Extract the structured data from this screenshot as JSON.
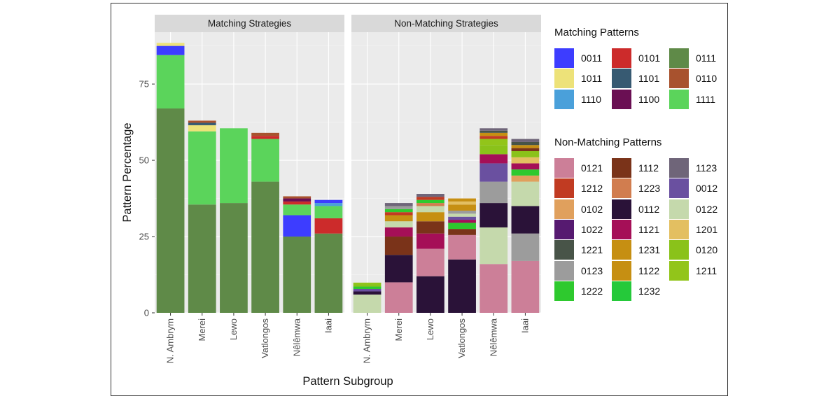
{
  "chart_data": {
    "type": "bar",
    "stacked": true,
    "xlabel": "Pattern Subgroup",
    "ylabel": "Pattern Percentage",
    "ylim": [
      0,
      92
    ],
    "yticks": [
      0,
      25,
      50,
      75
    ],
    "grid": true,
    "categories": [
      "N. Ambrym",
      "Merei",
      "Lewo",
      "Vatlongos",
      "Nêlêmwa",
      "Iaai"
    ],
    "facets": [
      {
        "title": "Matching Strategies",
        "bars": [
          [
            {
              "pattern": "0111",
              "value": 67
            },
            {
              "pattern": "1111",
              "value": 17.5
            },
            {
              "pattern": "0011",
              "value": 3
            },
            {
              "pattern": "1011",
              "value": 1
            }
          ],
          [
            {
              "pattern": "0111",
              "value": 35.5
            },
            {
              "pattern": "1111",
              "value": 24
            },
            {
              "pattern": "1011",
              "value": 2
            },
            {
              "pattern": "1101",
              "value": 0.8
            },
            {
              "pattern": "0110",
              "value": 0.7
            }
          ],
          [
            {
              "pattern": "0111",
              "value": 36
            },
            {
              "pattern": "1111",
              "value": 24.5
            }
          ],
          [
            {
              "pattern": "0111",
              "value": 43
            },
            {
              "pattern": "1111",
              "value": 14
            },
            {
              "pattern": "0101",
              "value": 1
            },
            {
              "pattern": "0110",
              "value": 1
            }
          ],
          [
            {
              "pattern": "0111",
              "value": 25
            },
            {
              "pattern": "0011",
              "value": 7
            },
            {
              "pattern": "1111",
              "value": 3.5
            },
            {
              "pattern": "0101",
              "value": 1
            },
            {
              "pattern": "1100",
              "value": 1
            },
            {
              "pattern": "0110",
              "value": 0.7
            }
          ],
          [
            {
              "pattern": "0111",
              "value": 26
            },
            {
              "pattern": "0101",
              "value": 5
            },
            {
              "pattern": "1111",
              "value": 4
            },
            {
              "pattern": "1110",
              "value": 1
            },
            {
              "pattern": "0011",
              "value": 1
            }
          ]
        ]
      },
      {
        "title": "Non-Matching Strategies",
        "bars": [
          [
            {
              "pattern": "0122",
              "value": 6
            },
            {
              "pattern": "0112",
              "value": 1
            },
            {
              "pattern": "0012",
              "value": 0.8
            },
            {
              "pattern": "1222",
              "value": 0.8
            },
            {
              "pattern": "0120",
              "value": 0.8
            },
            {
              "pattern": "1211",
              "value": 0.5
            }
          ],
          [
            {
              "pattern": "0121",
              "value": 10
            },
            {
              "pattern": "0112",
              "value": 9
            },
            {
              "pattern": "1112",
              "value": 6
            },
            {
              "pattern": "1121",
              "value": 3
            },
            {
              "pattern": "0122",
              "value": 2
            },
            {
              "pattern": "1231",
              "value": 2
            },
            {
              "pattern": "1212",
              "value": 1
            },
            {
              "pattern": "1222",
              "value": 1
            },
            {
              "pattern": "0123",
              "value": 1
            },
            {
              "pattern": "1123",
              "value": 1
            }
          ],
          [
            {
              "pattern": "0112",
              "value": 12
            },
            {
              "pattern": "0121",
              "value": 9
            },
            {
              "pattern": "1121",
              "value": 5
            },
            {
              "pattern": "1112",
              "value": 4
            },
            {
              "pattern": "1231",
              "value": 3
            },
            {
              "pattern": "0122",
              "value": 2
            },
            {
              "pattern": "1223",
              "value": 1
            },
            {
              "pattern": "1222",
              "value": 1
            },
            {
              "pattern": "1212",
              "value": 1
            },
            {
              "pattern": "1123",
              "value": 1
            }
          ],
          [
            {
              "pattern": "0112",
              "value": 17.5
            },
            {
              "pattern": "0121",
              "value": 8
            },
            {
              "pattern": "1112",
              "value": 2
            },
            {
              "pattern": "1222",
              "value": 2
            },
            {
              "pattern": "1121",
              "value": 1
            },
            {
              "pattern": "0012",
              "value": 1
            },
            {
              "pattern": "0122",
              "value": 1
            },
            {
              "pattern": "0123",
              "value": 1
            },
            {
              "pattern": "1122",
              "value": 2
            },
            {
              "pattern": "1201",
              "value": 1
            },
            {
              "pattern": "1231",
              "value": 1
            }
          ],
          [
            {
              "pattern": "0121",
              "value": 16
            },
            {
              "pattern": "0122",
              "value": 12
            },
            {
              "pattern": "0112",
              "value": 8
            },
            {
              "pattern": "0123",
              "value": 7
            },
            {
              "pattern": "0012",
              "value": 6
            },
            {
              "pattern": "1121",
              "value": 3
            },
            {
              "pattern": "0120",
              "value": 3
            },
            {
              "pattern": "1211",
              "value": 2
            },
            {
              "pattern": "1212",
              "value": 1
            },
            {
              "pattern": "1122",
              "value": 1
            },
            {
              "pattern": "1221",
              "value": 0.7
            },
            {
              "pattern": "1123",
              "value": 0.8
            }
          ],
          [
            {
              "pattern": "0121",
              "value": 17
            },
            {
              "pattern": "0123",
              "value": 9
            },
            {
              "pattern": "0112",
              "value": 9
            },
            {
              "pattern": "0122",
              "value": 8
            },
            {
              "pattern": "0102",
              "value": 2
            },
            {
              "pattern": "1222",
              "value": 2
            },
            {
              "pattern": "1121",
              "value": 2
            },
            {
              "pattern": "1201",
              "value": 2
            },
            {
              "pattern": "0120",
              "value": 2
            },
            {
              "pattern": "1112",
              "value": 1
            },
            {
              "pattern": "1231",
              "value": 1
            },
            {
              "pattern": "1221",
              "value": 1
            },
            {
              "pattern": "1123",
              "value": 1
            }
          ]
        ]
      }
    ],
    "legends": [
      {
        "title": "Matching Patterns",
        "items": [
          {
            "label": "0011",
            "color": "#3d3dff"
          },
          {
            "label": "0101",
            "color": "#cc2b2b"
          },
          {
            "label": "0111",
            "color": "#5f8a48"
          },
          {
            "label": "1011",
            "color": "#ede279"
          },
          {
            "label": "1101",
            "color": "#375a72"
          },
          {
            "label": "0110",
            "color": "#a8522e"
          },
          {
            "label": "1110",
            "color": "#4aa0da"
          },
          {
            "label": "1100",
            "color": "#6a0f53"
          },
          {
            "label": "1111",
            "color": "#5bd45b"
          }
        ]
      },
      {
        "title": "Non-Matching Patterns",
        "items": [
          {
            "label": "0121",
            "color": "#cc7f98"
          },
          {
            "label": "1112",
            "color": "#7a3319"
          },
          {
            "label": "1123",
            "color": "#6f6579"
          },
          {
            "label": "1212",
            "color": "#c13b22"
          },
          {
            "label": "1223",
            "color": "#d17d4f"
          },
          {
            "label": "0012",
            "color": "#6a50a0"
          },
          {
            "label": "0102",
            "color": "#e0a05d"
          },
          {
            "label": "0112",
            "color": "#2a1238"
          },
          {
            "label": "0122",
            "color": "#c5d9ac"
          },
          {
            "label": "1022",
            "color": "#561a70"
          },
          {
            "label": "1121",
            "color": "#a50f57"
          },
          {
            "label": "1201",
            "color": "#e3bf61"
          },
          {
            "label": "1221",
            "color": "#485448"
          },
          {
            "label": "1231",
            "color": "#c68f12"
          },
          {
            "label": "0120",
            "color": "#8ac21a"
          },
          {
            "label": "0123",
            "color": "#9c9c9c"
          },
          {
            "label": "1122",
            "color": "#c68f12"
          },
          {
            "label": "1211",
            "color": "#92c51a"
          },
          {
            "label": "1222",
            "color": "#2ec92e"
          },
          {
            "label": "1232",
            "color": "#25c93a"
          }
        ]
      }
    ]
  }
}
